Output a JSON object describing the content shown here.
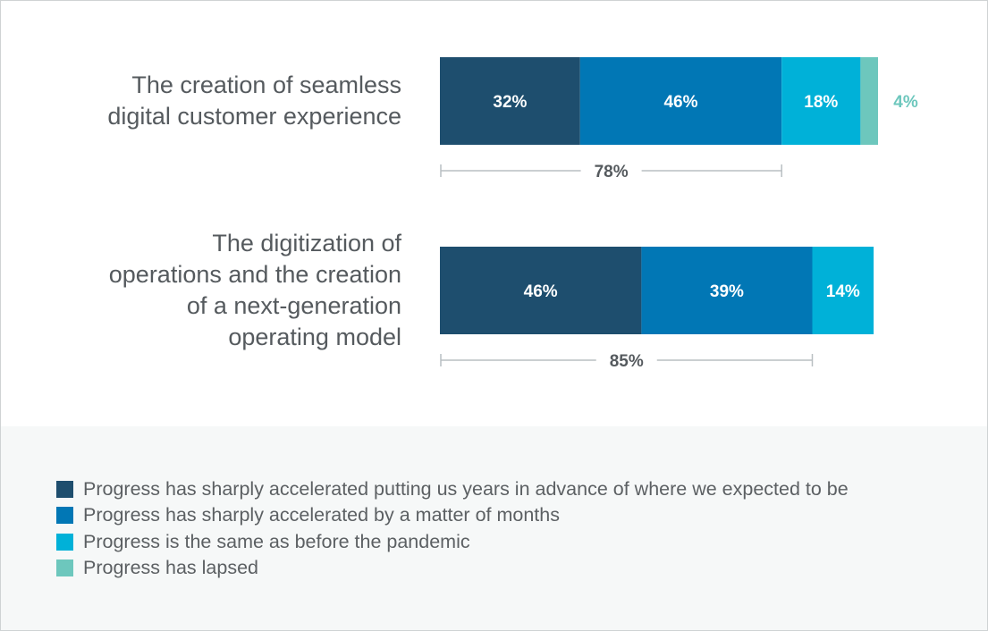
{
  "chart_data": {
    "type": "bar",
    "orientation": "horizontal",
    "stacked": true,
    "categories": [
      "The creation of seamless\ndigital customer experience",
      "The digitization of\noperations and the creation\nof a next-generation\noperating model"
    ],
    "series": [
      {
        "name": "Progress has sharply accelerated putting us years in advance of where we expected to be",
        "color": "#1e4e6e",
        "values": [
          32,
          46
        ]
      },
      {
        "name": "Progress has sharply accelerated by a matter of months",
        "color": "#0177b5",
        "values": [
          46,
          39
        ]
      },
      {
        "name": "Progress is the same as before the pandemic",
        "color": "#00b1d8",
        "values": [
          18,
          14
        ]
      },
      {
        "name": "Progress has lapsed",
        "color": "#6dc7bd",
        "values": [
          4,
          0
        ]
      }
    ],
    "value_labels": [
      [
        "32%",
        "46%",
        "18%",
        "4%"
      ],
      [
        "46%",
        "39%",
        "14%",
        ""
      ]
    ],
    "brackets": [
      {
        "label": "78%",
        "value": 78
      },
      {
        "label": "85%",
        "value": 85
      }
    ],
    "xlim": [
      0,
      100
    ],
    "legend_position": "bottom",
    "grid": false
  }
}
